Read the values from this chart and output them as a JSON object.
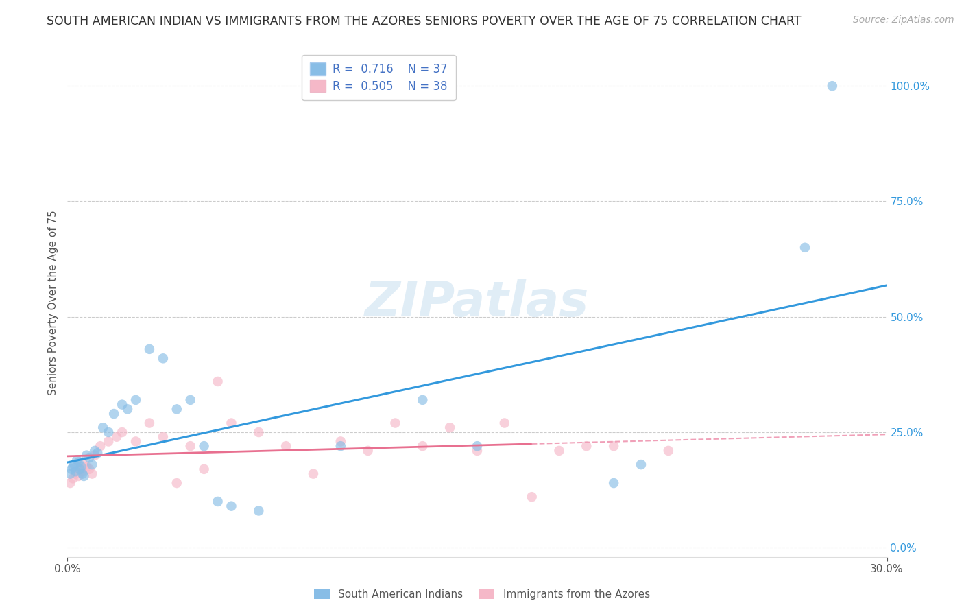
{
  "title": "SOUTH AMERICAN INDIAN VS IMMIGRANTS FROM THE AZORES SENIORS POVERTY OVER THE AGE OF 75 CORRELATION CHART",
  "source": "Source: ZipAtlas.com",
  "ylabel": "Seniors Poverty Over the Age of 75",
  "ytick_labels": [
    "0.0%",
    "25.0%",
    "50.0%",
    "75.0%",
    "100.0%"
  ],
  "ytick_values": [
    0.0,
    25.0,
    50.0,
    75.0,
    100.0
  ],
  "xtick_left_label": "0.0%",
  "xtick_right_label": "30.0%",
  "xlim": [
    0.0,
    30.0
  ],
  "ylim": [
    -2.0,
    108.0
  ],
  "watermark_text": "ZIPatlas",
  "legend1_label": "South American Indians",
  "legend2_label": "Immigrants from the Azores",
  "R1": "0.716",
  "N1": "37",
  "R2": "0.505",
  "N2": "38",
  "color1": "#88bde6",
  "color2": "#f5b8c8",
  "line1_color": "#3399dd",
  "line2_solid_color": "#e87090",
  "line2_dash_color": "#f0a0b8",
  "blue_x": [
    0.1,
    0.15,
    0.2,
    0.25,
    0.3,
    0.35,
    0.4,
    0.45,
    0.5,
    0.55,
    0.6,
    0.7,
    0.8,
    0.9,
    1.0,
    1.1,
    1.3,
    1.5,
    1.7,
    2.0,
    2.2,
    2.5,
    3.0,
    3.5,
    4.0,
    4.5,
    5.0,
    5.5,
    6.0,
    7.0,
    10.0,
    13.0,
    15.0,
    20.0,
    21.0,
    27.0,
    28.0
  ],
  "blue_y": [
    16.0,
    17.0,
    17.5,
    18.0,
    16.5,
    19.0,
    18.5,
    17.0,
    17.5,
    16.0,
    15.5,
    20.0,
    19.5,
    18.0,
    21.0,
    20.5,
    26.0,
    25.0,
    29.0,
    31.0,
    30.0,
    32.0,
    43.0,
    41.0,
    30.0,
    32.0,
    22.0,
    10.0,
    9.0,
    8.0,
    22.0,
    32.0,
    22.0,
    14.0,
    18.0,
    65.0,
    100.0
  ],
  "pink_x": [
    0.1,
    0.2,
    0.3,
    0.4,
    0.5,
    0.55,
    0.6,
    0.7,
    0.8,
    0.9,
    1.0,
    1.2,
    1.5,
    1.8,
    2.0,
    2.5,
    3.0,
    3.5,
    4.0,
    4.5,
    5.0,
    5.5,
    6.0,
    7.0,
    8.0,
    9.0,
    10.0,
    11.0,
    12.0,
    13.0,
    14.0,
    15.0,
    16.0,
    17.0,
    18.0,
    19.0,
    20.0,
    22.0
  ],
  "pink_y": [
    14.0,
    15.0,
    16.0,
    15.5,
    17.0,
    16.5,
    18.0,
    17.5,
    17.0,
    16.0,
    20.0,
    22.0,
    23.0,
    24.0,
    25.0,
    23.0,
    27.0,
    24.0,
    14.0,
    22.0,
    17.0,
    36.0,
    27.0,
    25.0,
    22.0,
    16.0,
    23.0,
    21.0,
    27.0,
    22.0,
    26.0,
    21.0,
    27.0,
    11.0,
    21.0,
    22.0,
    22.0,
    21.0
  ],
  "grid_color": "#cccccc",
  "background_color": "#ffffff",
  "title_fontsize": 12.5,
  "source_fontsize": 10,
  "ylabel_fontsize": 11,
  "tick_fontsize": 11,
  "legend_fontsize": 12,
  "watermark_fontsize": 52,
  "scatter_size": 110,
  "scatter_alpha": 0.65
}
